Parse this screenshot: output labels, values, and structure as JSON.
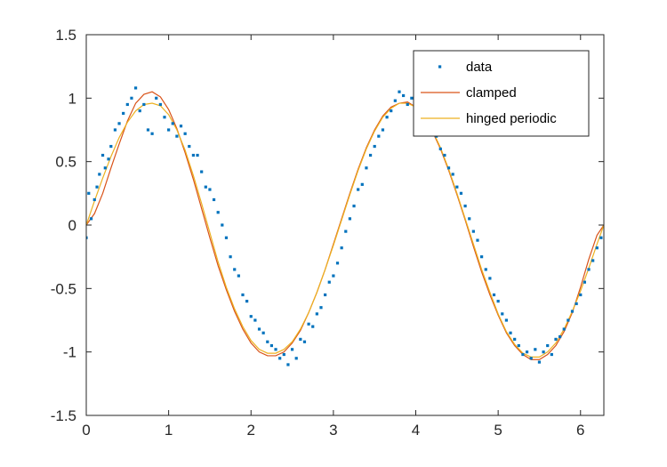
{
  "chart_data": {
    "type": "line",
    "title": "",
    "xlabel": "",
    "ylabel": "",
    "xlim": [
      0,
      6.2832
    ],
    "ylim": [
      -1.5,
      1.5
    ],
    "xticks": [
      0,
      1,
      2,
      3,
      4,
      5,
      6
    ],
    "yticks": [
      -1.5,
      -1,
      -0.5,
      0,
      0.5,
      1,
      1.5
    ],
    "xtick_labels": [
      "0",
      "1",
      "2",
      "3",
      "4",
      "5",
      "6"
    ],
    "ytick_labels": [
      "-1.5",
      "-1",
      "-0.5",
      "0",
      "0.5",
      "1",
      "1.5"
    ],
    "grid": false,
    "legend_position": "top-right",
    "colors": {
      "data": "#0072bd",
      "clamped": "#d95319",
      "hinged": "#edb120",
      "axis": "#262626"
    },
    "series": [
      {
        "name": "data",
        "style": "points",
        "x": [
          0.0,
          0.03,
          0.06,
          0.1,
          0.13,
          0.16,
          0.2,
          0.23,
          0.27,
          0.3,
          0.35,
          0.4,
          0.45,
          0.5,
          0.55,
          0.6,
          0.65,
          0.7,
          0.75,
          0.8,
          0.85,
          0.9,
          0.95,
          1.0,
          1.05,
          1.1,
          1.15,
          1.2,
          1.25,
          1.3,
          1.35,
          1.4,
          1.45,
          1.5,
          1.55,
          1.6,
          1.65,
          1.7,
          1.75,
          1.8,
          1.85,
          1.9,
          1.95,
          2.0,
          2.05,
          2.1,
          2.15,
          2.2,
          2.25,
          2.3,
          2.35,
          2.4,
          2.45,
          2.5,
          2.55,
          2.6,
          2.65,
          2.7,
          2.75,
          2.8,
          2.85,
          2.9,
          2.95,
          3.0,
          3.05,
          3.1,
          3.15,
          3.2,
          3.25,
          3.3,
          3.35,
          3.4,
          3.45,
          3.5,
          3.55,
          3.6,
          3.65,
          3.7,
          3.75,
          3.8,
          3.85,
          3.9,
          3.95,
          4.0,
          4.05,
          4.1,
          4.15,
          4.2,
          4.25,
          4.3,
          4.35,
          4.4,
          4.45,
          4.5,
          4.55,
          4.6,
          4.65,
          4.7,
          4.75,
          4.8,
          4.85,
          4.9,
          4.95,
          5.0,
          5.05,
          5.1,
          5.15,
          5.2,
          5.25,
          5.3,
          5.35,
          5.4,
          5.45,
          5.5,
          5.55,
          5.6,
          5.65,
          5.7,
          5.75,
          5.8,
          5.85,
          5.9,
          5.95,
          6.0,
          6.05,
          6.1,
          6.15,
          6.2,
          6.25
        ],
        "y": [
          -0.1,
          0.25,
          0.05,
          0.2,
          0.3,
          0.4,
          0.55,
          0.45,
          0.52,
          0.62,
          0.75,
          0.8,
          0.88,
          0.95,
          1.0,
          1.08,
          0.9,
          0.95,
          0.75,
          0.72,
          1.0,
          0.95,
          0.85,
          0.75,
          0.8,
          0.7,
          0.78,
          0.72,
          0.62,
          0.55,
          0.55,
          0.42,
          0.3,
          0.28,
          0.2,
          0.1,
          0.0,
          -0.1,
          -0.25,
          -0.35,
          -0.4,
          -0.55,
          -0.6,
          -0.72,
          -0.75,
          -0.82,
          -0.85,
          -0.92,
          -0.95,
          -0.98,
          -1.05,
          -1.02,
          -1.1,
          -0.98,
          -1.05,
          -0.9,
          -0.92,
          -0.78,
          -0.8,
          -0.7,
          -0.65,
          -0.55,
          -0.45,
          -0.4,
          -0.3,
          -0.18,
          -0.05,
          0.05,
          0.15,
          0.28,
          0.32,
          0.45,
          0.55,
          0.62,
          0.7,
          0.75,
          0.85,
          0.9,
          0.98,
          1.05,
          1.02,
          0.95,
          1.0,
          0.92,
          0.98,
          0.85,
          0.8,
          0.75,
          0.7,
          0.6,
          0.55,
          0.45,
          0.4,
          0.3,
          0.25,
          0.15,
          0.05,
          -0.05,
          -0.12,
          -0.25,
          -0.35,
          -0.42,
          -0.55,
          -0.6,
          -0.7,
          -0.75,
          -0.85,
          -0.9,
          -0.95,
          -1.02,
          -1.0,
          -1.05,
          -0.98,
          -1.08,
          -1.0,
          -0.95,
          -1.02,
          -0.9,
          -0.88,
          -0.82,
          -0.75,
          -0.68,
          -0.62,
          -0.55,
          -0.45,
          -0.35,
          -0.28,
          -0.18,
          -0.1
        ]
      },
      {
        "name": "clamped",
        "style": "line",
        "x": [
          0,
          0.1,
          0.2,
          0.3,
          0.4,
          0.5,
          0.6,
          0.7,
          0.8,
          0.9,
          1.0,
          1.1,
          1.2,
          1.3,
          1.4,
          1.5,
          1.6,
          1.7,
          1.8,
          1.9,
          2.0,
          2.1,
          2.2,
          2.3,
          2.4,
          2.5,
          2.6,
          2.7,
          2.8,
          2.9,
          3.0,
          3.1,
          3.2,
          3.3,
          3.4,
          3.5,
          3.6,
          3.7,
          3.8,
          3.9,
          4.0,
          4.1,
          4.2,
          4.3,
          4.4,
          4.5,
          4.6,
          4.7,
          4.8,
          4.9,
          5.0,
          5.1,
          5.2,
          5.3,
          5.4,
          5.5,
          5.6,
          5.7,
          5.8,
          5.9,
          6.0,
          6.1,
          6.2,
          6.2832
        ],
        "y": [
          0.0,
          0.09,
          0.25,
          0.45,
          0.64,
          0.82,
          0.96,
          1.03,
          1.05,
          1.01,
          0.91,
          0.76,
          0.57,
          0.36,
          0.13,
          -0.1,
          -0.32,
          -0.51,
          -0.68,
          -0.82,
          -0.93,
          -1.0,
          -1.03,
          -1.03,
          -1.0,
          -0.93,
          -0.83,
          -0.69,
          -0.53,
          -0.35,
          -0.15,
          0.05,
          0.25,
          0.44,
          0.61,
          0.75,
          0.86,
          0.93,
          0.96,
          0.97,
          0.93,
          0.85,
          0.74,
          0.6,
          0.43,
          0.24,
          0.04,
          -0.17,
          -0.37,
          -0.55,
          -0.71,
          -0.85,
          -0.95,
          -1.02,
          -1.06,
          -1.06,
          -1.02,
          -0.95,
          -0.84,
          -0.69,
          -0.49,
          -0.27,
          -0.08,
          0.0
        ]
      },
      {
        "name": "hinged periodic",
        "style": "line",
        "x": [
          0,
          0.1,
          0.2,
          0.3,
          0.4,
          0.5,
          0.6,
          0.7,
          0.8,
          0.9,
          1.0,
          1.1,
          1.2,
          1.3,
          1.4,
          1.5,
          1.6,
          1.7,
          1.8,
          1.9,
          2.0,
          2.1,
          2.2,
          2.3,
          2.4,
          2.5,
          2.6,
          2.7,
          2.8,
          2.9,
          3.0,
          3.1,
          3.2,
          3.3,
          3.4,
          3.5,
          3.6,
          3.7,
          3.8,
          3.9,
          4.0,
          4.1,
          4.2,
          4.3,
          4.4,
          4.5,
          4.6,
          4.7,
          4.8,
          4.9,
          5.0,
          5.1,
          5.2,
          5.3,
          5.4,
          5.5,
          5.6,
          5.7,
          5.8,
          5.9,
          6.0,
          6.1,
          6.2,
          6.2832
        ],
        "y": [
          0.0,
          0.19,
          0.37,
          0.54,
          0.69,
          0.81,
          0.9,
          0.95,
          0.96,
          0.94,
          0.87,
          0.75,
          0.59,
          0.39,
          0.17,
          -0.06,
          -0.29,
          -0.49,
          -0.66,
          -0.8,
          -0.91,
          -0.98,
          -1.01,
          -1.01,
          -0.98,
          -0.92,
          -0.82,
          -0.69,
          -0.53,
          -0.35,
          -0.16,
          0.04,
          0.24,
          0.43,
          0.6,
          0.74,
          0.85,
          0.92,
          0.96,
          0.96,
          0.93,
          0.86,
          0.75,
          0.61,
          0.44,
          0.25,
          0.05,
          -0.15,
          -0.35,
          -0.53,
          -0.7,
          -0.84,
          -0.94,
          -1.01,
          -1.04,
          -1.04,
          -1.0,
          -0.93,
          -0.82,
          -0.68,
          -0.52,
          -0.34,
          -0.15,
          0.0
        ]
      }
    ]
  }
}
